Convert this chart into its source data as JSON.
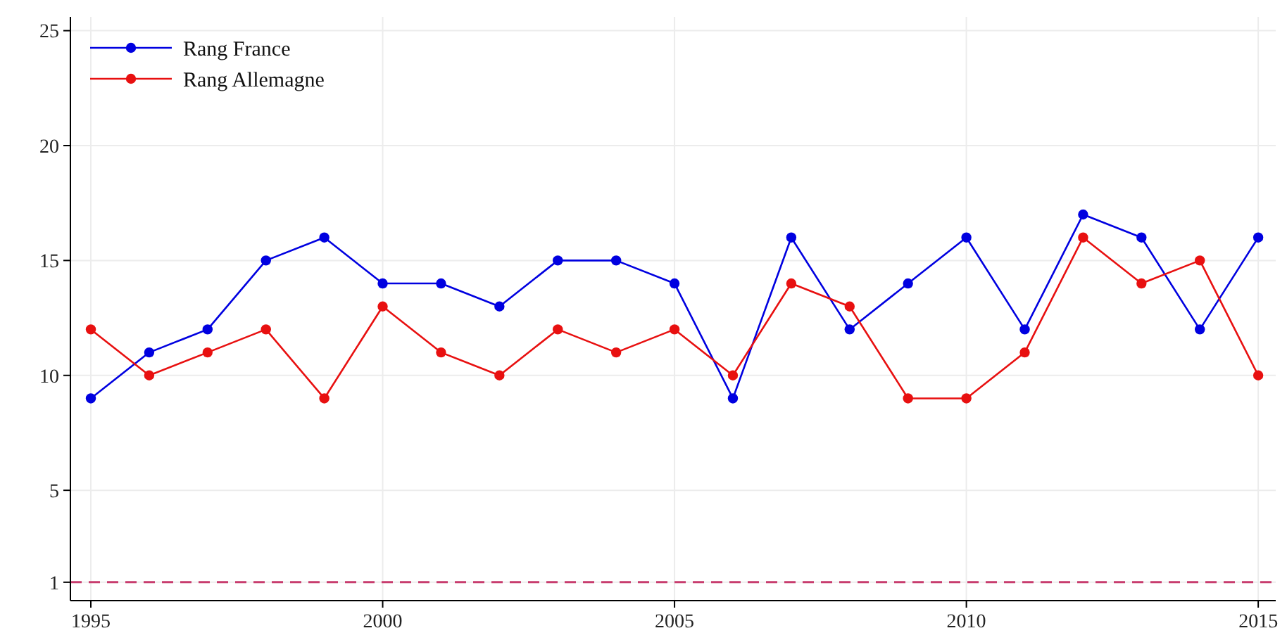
{
  "chart_data": {
    "type": "line",
    "x": [
      1995,
      1996,
      1997,
      1998,
      1999,
      2000,
      2001,
      2002,
      2003,
      2004,
      2005,
      2006,
      2007,
      2008,
      2009,
      2010,
      2011,
      2012,
      2013,
      2014,
      2015
    ],
    "series": [
      {
        "name": "Rang France",
        "color": "#0000e0",
        "values": [
          9,
          11,
          12,
          15,
          16,
          14,
          14,
          13,
          15,
          15,
          14,
          9,
          16,
          12,
          14,
          16,
          12,
          17,
          16,
          12,
          16
        ]
      },
      {
        "name": "Rang Allemagne",
        "color": "#e81010",
        "values": [
          12,
          10,
          11,
          12,
          9,
          13,
          11,
          10,
          12,
          11,
          12,
          10,
          14,
          13,
          9,
          9,
          11,
          16,
          14,
          15,
          10
        ]
      }
    ],
    "xlim": [
      1994.65,
      2015.3
    ],
    "xticks": [
      1995,
      2000,
      2005,
      2010,
      2015
    ],
    "ylim": [
      0.2,
      25.6
    ],
    "yticks": [
      1,
      5,
      10,
      15,
      20,
      25
    ],
    "grid": true,
    "legend": "top left",
    "marker": "circle",
    "line_style": "solid",
    "ref_lines": [
      {
        "axis": "y",
        "value": 1,
        "color": "#c83c6e",
        "line_style": "dashed"
      }
    ]
  }
}
